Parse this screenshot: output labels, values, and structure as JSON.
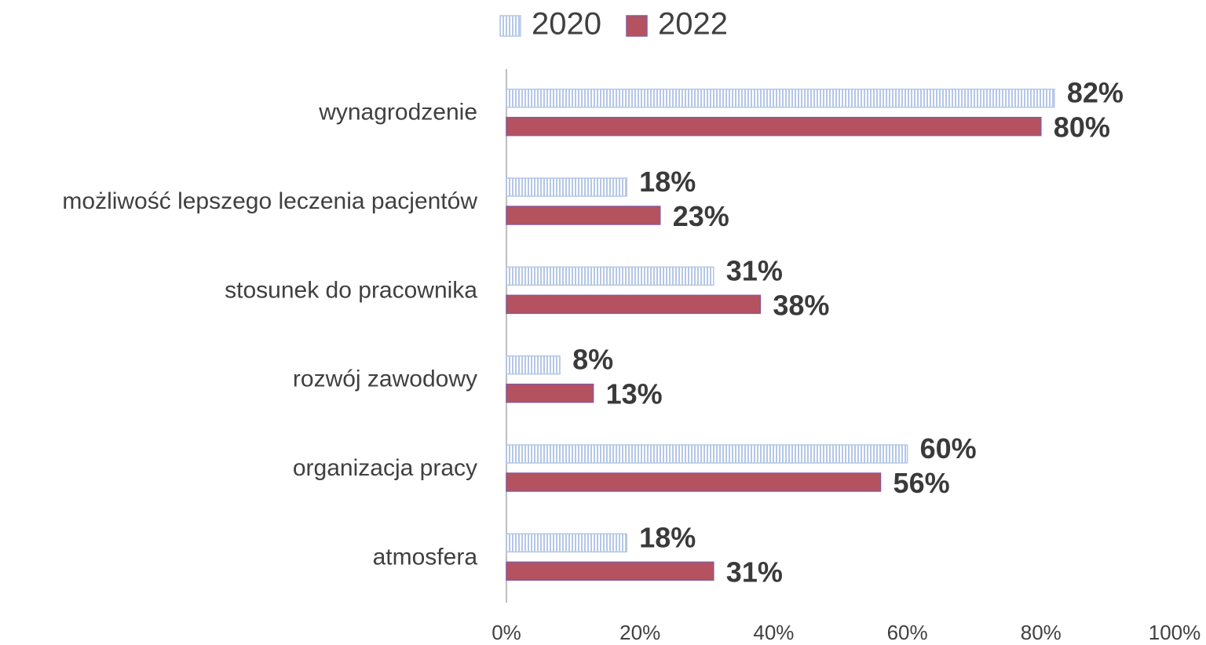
{
  "chart_data": {
    "type": "hbar",
    "categories": [
      "wynagrodzenie",
      "możliwość lepszego leczenia pacjentów",
      "stosunek do pracownika",
      "rozwój zawodowy",
      "organizacja pracy",
      "atmosfera"
    ],
    "series": [
      {
        "name": "2020",
        "color": "#b4c7e7",
        "values": [
          82,
          18,
          31,
          8,
          60,
          18
        ],
        "value_labels": [
          "82%",
          "18%",
          "31%",
          "8%",
          "60%",
          "18%"
        ]
      },
      {
        "name": "2022",
        "color": "#b5525f",
        "values": [
          80,
          23,
          38,
          13,
          56,
          31
        ],
        "value_labels": [
          "80%",
          "23%",
          "38%",
          "13%",
          "56%",
          "31%"
        ]
      }
    ],
    "xlim": [
      0,
      100
    ],
    "xticks": [
      {
        "value": 0,
        "label": "0%"
      },
      {
        "value": 20,
        "label": "20%"
      },
      {
        "value": 40,
        "label": "40%"
      },
      {
        "value": 60,
        "label": "60%"
      },
      {
        "value": 80,
        "label": "80%"
      },
      {
        "value": 100,
        "label": "100%"
      }
    ],
    "legend": "top"
  }
}
